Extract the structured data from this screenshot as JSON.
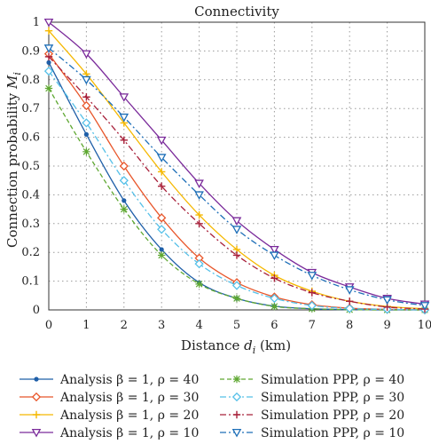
{
  "chart_data": {
    "type": "line",
    "title": "Connectivity",
    "xlabel": "Distance d_i (km)",
    "ylabel": "Connection probability M_i",
    "xlabel_parts": {
      "pre": "Distance ",
      "sym": "d",
      "sub": "i",
      "post": " (km)"
    },
    "ylabel_parts": {
      "pre": "Connection probability ",
      "sym": "M",
      "sub": "i"
    },
    "xlim": [
      0,
      10
    ],
    "ylim": [
      0,
      1
    ],
    "xticks": [
      0,
      1,
      2,
      3,
      4,
      5,
      6,
      7,
      8,
      9,
      10
    ],
    "yticks": [
      0,
      0.1,
      0.2,
      0.3,
      0.4,
      0.5,
      0.6,
      0.7,
      0.8,
      0.9,
      1
    ],
    "xtick_labels": [
      "0",
      "1",
      "2",
      "3",
      "4",
      "5",
      "6",
      "7",
      "8",
      "9",
      "10"
    ],
    "ytick_labels": [
      "0",
      "0.1",
      "0.2",
      "0.3",
      "0.4",
      "0.5",
      "0.6",
      "0.7",
      "0.8",
      "0.9",
      "1"
    ],
    "grid": true,
    "legend_position": "bottom",
    "series": [
      {
        "name": "Analysis β = 1, ρ = 40",
        "style": "solid",
        "marker": "dot",
        "color": "#1f5fa8",
        "x": [
          0,
          1,
          2,
          3,
          4,
          5,
          6,
          7,
          8,
          9,
          10
        ],
        "y": [
          0.86,
          0.61,
          0.38,
          0.21,
          0.095,
          0.04,
          0.013,
          0.004,
          0.001,
          0,
          0
        ]
      },
      {
        "name": "Analysis β = 1, ρ = 30",
        "style": "solid",
        "marker": "diamond",
        "color": "#e8562a",
        "x": [
          0,
          1,
          2,
          3,
          4,
          5,
          6,
          7,
          8,
          9,
          10
        ],
        "y": [
          0.89,
          0.71,
          0.5,
          0.32,
          0.18,
          0.095,
          0.045,
          0.018,
          0.006,
          0.002,
          0
        ]
      },
      {
        "name": "Analysis β = 1, ρ = 20",
        "style": "solid",
        "marker": "plus",
        "color": "#f5b800",
        "x": [
          0,
          1,
          2,
          3,
          4,
          5,
          6,
          7,
          8,
          9,
          10
        ],
        "y": [
          0.97,
          0.82,
          0.65,
          0.48,
          0.33,
          0.21,
          0.12,
          0.065,
          0.03,
          0.012,
          0.004
        ]
      },
      {
        "name": "Analysis β = 1, ρ = 10",
        "style": "solid",
        "marker": "triangle-down",
        "color": "#7a2a9a",
        "x": [
          0,
          1,
          2,
          3,
          4,
          5,
          6,
          7,
          8,
          9,
          10
        ],
        "y": [
          1.0,
          0.89,
          0.74,
          0.59,
          0.44,
          0.31,
          0.21,
          0.13,
          0.08,
          0.04,
          0.02
        ]
      },
      {
        "name": "Simulation PPP, ρ = 40",
        "style": "dashed",
        "marker": "star",
        "color": "#5fa832",
        "x": [
          0,
          1,
          2,
          3,
          4,
          5,
          6,
          7,
          8,
          9,
          10
        ],
        "y": [
          0.77,
          0.55,
          0.35,
          0.19,
          0.09,
          0.04,
          0.012,
          0.004,
          0.001,
          0,
          0
        ]
      },
      {
        "name": "Simulation PPP, ρ = 30",
        "style": "dashdot",
        "marker": "diamond-open",
        "color": "#56c0e8",
        "x": [
          0,
          1,
          2,
          3,
          4,
          5,
          6,
          7,
          8,
          9,
          10
        ],
        "y": [
          0.83,
          0.65,
          0.45,
          0.28,
          0.16,
          0.085,
          0.04,
          0.015,
          0.005,
          0.002,
          0
        ]
      },
      {
        "name": "Simulation PPP, ρ = 20",
        "style": "dashdot",
        "marker": "plus",
        "color": "#a8203a",
        "x": [
          0,
          1,
          2,
          3,
          4,
          5,
          6,
          7,
          8,
          9,
          10
        ],
        "y": [
          0.88,
          0.74,
          0.59,
          0.43,
          0.3,
          0.19,
          0.11,
          0.06,
          0.03,
          0.01,
          0.003
        ]
      },
      {
        "name": "Simulation PPP, ρ = 10",
        "style": "dashdot",
        "marker": "triangle-down-open",
        "color": "#1e6fb8",
        "x": [
          0,
          1,
          2,
          3,
          4,
          5,
          6,
          7,
          8,
          9,
          10
        ],
        "y": [
          0.91,
          0.8,
          0.67,
          0.53,
          0.4,
          0.28,
          0.19,
          0.12,
          0.07,
          0.035,
          0.015
        ]
      }
    ]
  }
}
